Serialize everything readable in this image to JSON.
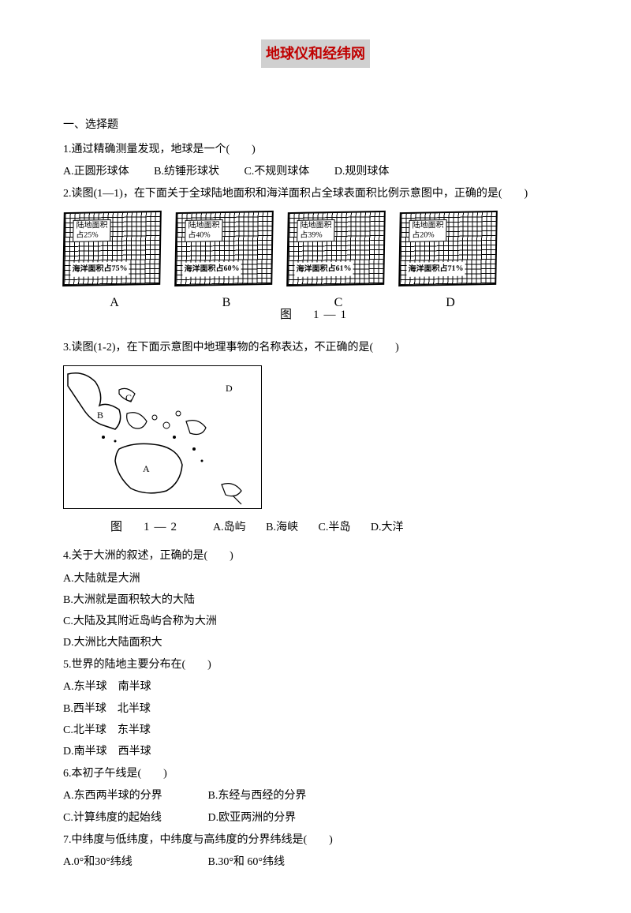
{
  "title": "地球仪和经纬网",
  "sectionHeader": "一、选择题",
  "q1": {
    "text": "1.通过精确测量发现，地球是一个(　　)",
    "a": "A.正圆形球体",
    "b": "B.纺锤形球状",
    "c": "C.不规则球体",
    "d": "D.规则球体"
  },
  "q2": {
    "text": "2.读图(1—1)，在下面关于全球陆地面积和海洋面积占全球表面积比例示意图中，正确的是(　　)"
  },
  "fig1": {
    "caption": "图　1—1",
    "charts": [
      {
        "letter": "A",
        "land": "陆地面积\n占25%",
        "ocean": "海洋面积占75%"
      },
      {
        "letter": "B",
        "land": "陆地面积\n占40%",
        "ocean": "海洋面积占60%"
      },
      {
        "letter": "C",
        "land": "陆地面积\n占39%",
        "ocean": "海洋面积占61%"
      },
      {
        "letter": "D",
        "land": "陆地面积\n占20%",
        "ocean": "海洋面积占71%"
      }
    ]
  },
  "q3": {
    "text": "3.读图(1-2)，在下面示意图中地理事物的名称表达，不正确的是(　　)",
    "a": "A.岛屿",
    "b": "B.海峡",
    "c": "C.半岛",
    "d": "D.大洋"
  },
  "fig2": {
    "caption": "图　1—2",
    "labels": {
      "a": "A",
      "b": "B",
      "c": "C",
      "d": "D"
    }
  },
  "q4": {
    "text": "4.关于大洲的叙述，正确的是(　　)",
    "a": "A.大陆就是大洲",
    "b": "B.大洲就是面积较大的大陆",
    "c": "C.大陆及其附近岛屿合称为大洲",
    "d": "D.大洲比大陆面积大"
  },
  "q5": {
    "text": "5.世界的陆地主要分布在(　　)",
    "a": "A.东半球　南半球",
    "b": "B.西半球　北半球",
    "c": "C.北半球　东半球",
    "d": "D.南半球　西半球"
  },
  "q6": {
    "text": "6.本初子午线是(　　)",
    "a": "A.东西两半球的分界",
    "b": "B.东经与西经的分界",
    "c": "C.计算纬度的起始线",
    "d": "D.欧亚两洲的分界"
  },
  "q7": {
    "text": "7.中纬度与低纬度，中纬度与高纬度的分界纬线是(　　)",
    "a": "A.0°和30°纬线",
    "b": "B.30°和 60°纬线"
  }
}
